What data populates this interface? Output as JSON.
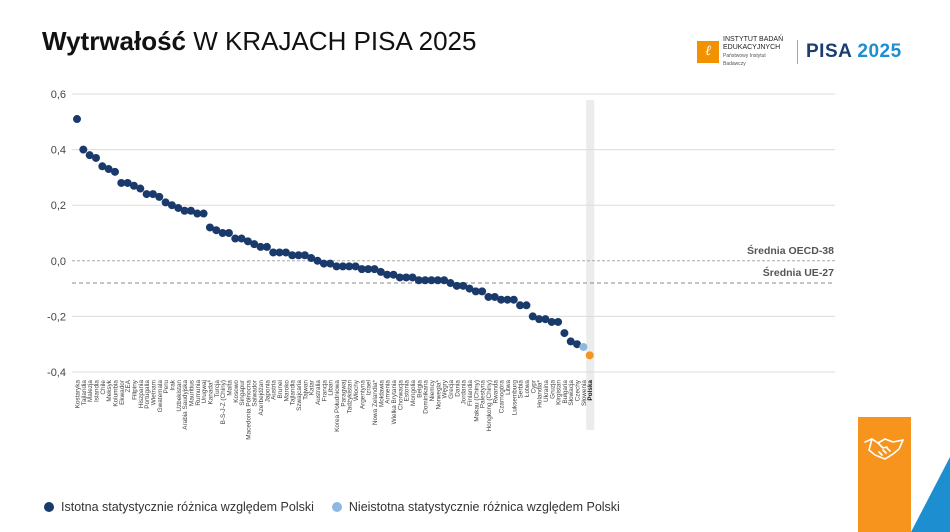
{
  "title": {
    "bold": "Wytrwałość",
    "rest": " W KRAJACH PISA 2025"
  },
  "logos": {
    "ibe_line1": "INSTYTUT BADAŃ",
    "ibe_line2": "EDUKACYJNYCH",
    "ibe_line3": "Państwowy Instytut Badawczy",
    "pisa_text": "PISA",
    "pisa_year": "2025"
  },
  "legend": {
    "significant": "Istotna statystycznie różnica względem Polski",
    "not_significant": "Nieistotna statystycznie różnica względem Polski"
  },
  "colors": {
    "significant": "#1a3a6b",
    "not_significant": "#8db8e2",
    "highlight": "#f7941d",
    "pisa_blue": "#1d8fd0"
  },
  "chart_data": {
    "type": "scatter",
    "ylim": [
      -0.4,
      0.6
    ],
    "yticks": [
      "0,6",
      "0,4",
      "0,2",
      "0,0",
      "-0,2",
      "-0,4"
    ],
    "grid": true,
    "reference_lines": [
      {
        "label": "Średnia OECD-38",
        "value": 0.0
      },
      {
        "label": "Średnia UE-27",
        "value": -0.08
      }
    ],
    "categories": [
      "Kostaryka",
      "Tajlandia",
      "Malezja",
      "Islandia",
      "Chile",
      "Meksyk",
      "Kolumbia",
      "Ekwador",
      "ZEA",
      "Filipiny",
      "Hiszpania",
      "Portugalia",
      "Wietnam",
      "Gwatemala",
      "Peru",
      "Irak",
      "Uzbekistan",
      "Arabia Saudyjska",
      "Mauritius",
      "Rumunia",
      "Urugwaj",
      "Kanada*",
      "Turcja",
      "B-S-J-Z (Chiny)",
      "Malta",
      "Kosowo",
      "Singapur",
      "Macedonia Północna",
      "Salwador",
      "Azerbejdżan",
      "Japonia",
      "Austria",
      "Brunei",
      "Maroko",
      "Tajlandia",
      "Szwajcaria",
      "Tajwan",
      "Katar",
      "Australia",
      "Francja",
      "Liban",
      "Korea Południowa",
      "Paragwaj",
      "Tadżykistan",
      "Włochy",
      "Argentyna",
      "Izrael",
      "Nowa Zelandia*",
      "Mołdawia",
      "Armenia",
      "Wielka Brytania",
      "Chorwacja",
      "Estonia",
      "Mongolia",
      "Belgia",
      "Dominikana",
      "Niemcy",
      "Norwegia*",
      "Węgry",
      "Grecja",
      "Dania",
      "Jordania",
      "Finlandia",
      "Makau (Chiny)",
      "Palestyna",
      "Hongkong (Chiny)",
      "Rwanda",
      "Czarnogóra",
      "Litwa",
      "Luksemburg",
      "Serbia",
      "Łotwa",
      "Cypr",
      "Holandia*",
      "Ukraina",
      "Gruzja",
      "Kirgistan",
      "Bułgaria",
      "Słowacja",
      "Czechy",
      "Słowenia",
      "Polska"
    ],
    "values": [
      0.51,
      0.4,
      0.38,
      0.37,
      0.34,
      0.33,
      0.32,
      0.28,
      0.28,
      0.27,
      0.26,
      0.24,
      0.24,
      0.23,
      0.21,
      0.2,
      0.19,
      0.18,
      0.18,
      0.17,
      0.17,
      0.12,
      0.11,
      0.1,
      0.1,
      0.08,
      0.08,
      0.07,
      0.06,
      0.05,
      0.05,
      0.03,
      0.03,
      0.03,
      0.02,
      0.02,
      0.02,
      0.01,
      0.0,
      -0.01,
      -0.01,
      -0.02,
      -0.02,
      -0.02,
      -0.02,
      -0.03,
      -0.03,
      -0.03,
      -0.04,
      -0.05,
      -0.05,
      -0.06,
      -0.06,
      -0.06,
      -0.07,
      -0.07,
      -0.07,
      -0.07,
      -0.07,
      -0.08,
      -0.09,
      -0.09,
      -0.1,
      -0.11,
      -0.11,
      -0.13,
      -0.13,
      -0.14,
      -0.14,
      -0.14,
      -0.16,
      -0.16,
      -0.2,
      -0.21,
      -0.21,
      -0.22,
      -0.22,
      -0.26,
      -0.29,
      -0.3,
      -0.31,
      -0.34
    ],
    "significance": [
      "s",
      "s",
      "s",
      "s",
      "s",
      "s",
      "s",
      "s",
      "s",
      "s",
      "s",
      "s",
      "s",
      "s",
      "s",
      "s",
      "s",
      "s",
      "s",
      "s",
      "s",
      "s",
      "s",
      "s",
      "s",
      "s",
      "s",
      "s",
      "s",
      "s",
      "s",
      "s",
      "s",
      "s",
      "s",
      "s",
      "s",
      "s",
      "s",
      "s",
      "s",
      "s",
      "s",
      "s",
      "s",
      "s",
      "s",
      "s",
      "s",
      "s",
      "s",
      "s",
      "s",
      "s",
      "s",
      "s",
      "s",
      "s",
      "s",
      "s",
      "s",
      "s",
      "s",
      "s",
      "s",
      "s",
      "s",
      "s",
      "s",
      "s",
      "s",
      "s",
      "s",
      "s",
      "s",
      "s",
      "s",
      "s",
      "s",
      "s",
      "n",
      "p"
    ],
    "highlighted_category": "Polska"
  }
}
